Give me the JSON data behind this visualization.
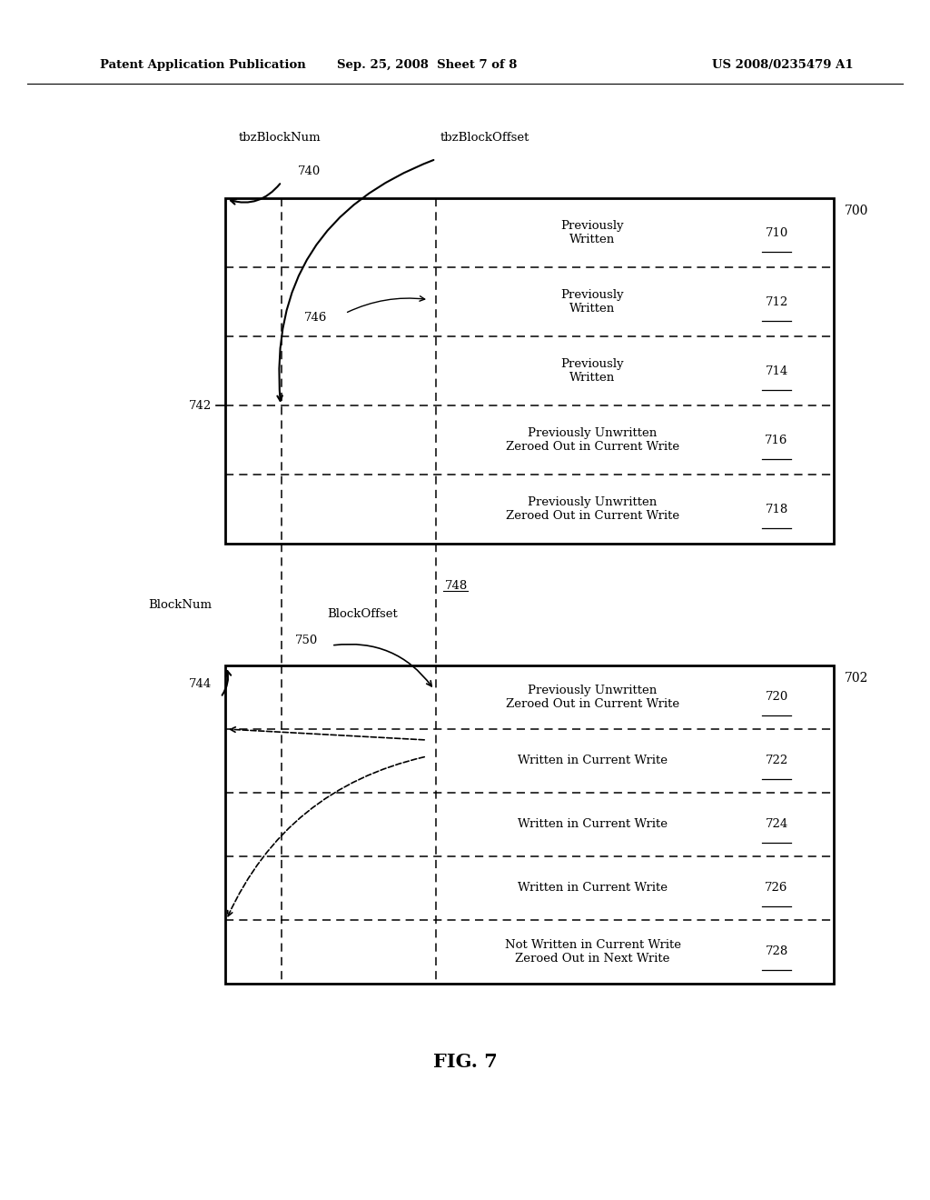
{
  "bg_color": "#ffffff",
  "header_left": "Patent Application Publication",
  "header_center": "Sep. 25, 2008  Sheet 7 of 8",
  "header_right": "US 2008/0235479 A1",
  "fig_label": "FIG. 7",
  "box700_rows": [
    {
      "label": "Previously\nWritten",
      "num": "710"
    },
    {
      "label": "Previously\nWritten",
      "num": "712"
    },
    {
      "label": "Previously\nWritten",
      "num": "714"
    },
    {
      "label": "Previously Unwritten\nZeroed Out in Current Write",
      "num": "716"
    },
    {
      "label": "Previously Unwritten\nZeroed Out in Current Write",
      "num": "718"
    }
  ],
  "box702_rows": [
    {
      "label": "Previously Unwritten\nZeroed Out in Current Write",
      "num": "720"
    },
    {
      "label": "Written in Current Write",
      "num": "722"
    },
    {
      "label": "Written in Current Write",
      "num": "724"
    },
    {
      "label": "Written in Current Write",
      "num": "726"
    },
    {
      "label": "Not Written in Current Write\nZeroed Out in Next Write",
      "num": "728"
    }
  ],
  "box700_label": "700",
  "box702_label": "702",
  "ann700": {
    "tbzBlockNum": "tbzBlockNum",
    "n740": "740",
    "tbzBlockOffset": "tbzBlockOffset",
    "n742": "742",
    "n746": "746"
  },
  "ann702": {
    "BlockNum": "BlockNum",
    "BlockOffset": "BlockOffset",
    "n744": "744",
    "n748": "748",
    "n750": "750"
  }
}
